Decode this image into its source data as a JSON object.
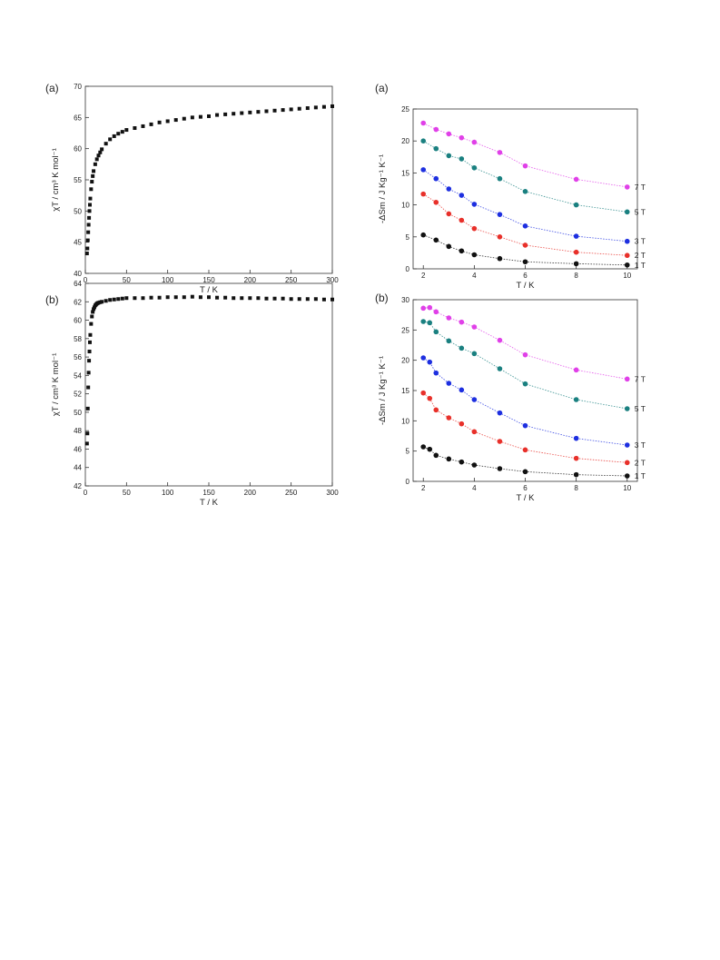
{
  "chart_data": [
    {
      "type": "scatter",
      "panel_label": "(a)",
      "xlabel": "T / K",
      "ylabel": "χT / cm³ K mol⁻¹",
      "xlim": [
        0,
        300
      ],
      "ylim": [
        40,
        70
      ],
      "xticks": [
        0,
        50,
        100,
        150,
        200,
        250,
        300
      ],
      "yticks": [
        40,
        45,
        50,
        55,
        60,
        65,
        70
      ],
      "marker": "square",
      "series": [
        {
          "color": "#111111",
          "x": [
            2,
            2.5,
            3,
            3.5,
            4,
            4.5,
            5,
            5.5,
            6,
            7,
            8,
            9,
            10,
            12,
            14,
            16,
            18,
            20,
            25,
            30,
            35,
            40,
            45,
            50,
            60,
            70,
            80,
            90,
            100,
            110,
            120,
            130,
            140,
            150,
            160,
            170,
            180,
            190,
            200,
            210,
            220,
            230,
            240,
            250,
            260,
            270,
            280,
            290,
            300
          ],
          "y": [
            43.2,
            44.0,
            45.3,
            46.6,
            47.8,
            48.9,
            50.0,
            51.0,
            52.0,
            53.5,
            54.7,
            55.6,
            56.4,
            57.5,
            58.3,
            58.9,
            59.4,
            59.9,
            60.8,
            61.5,
            62.0,
            62.4,
            62.7,
            63.0,
            63.3,
            63.6,
            63.9,
            64.2,
            64.4,
            64.6,
            64.8,
            65.0,
            65.1,
            65.2,
            65.4,
            65.5,
            65.6,
            65.7,
            65.8,
            65.9,
            66.0,
            66.1,
            66.2,
            66.3,
            66.4,
            66.5,
            66.6,
            66.7,
            66.8
          ]
        }
      ]
    },
    {
      "type": "line",
      "panel_label": "(a)",
      "xlabel": "T / K",
      "ylabel": "-ΔSm / J Kg⁻¹ K⁻¹",
      "xlim": [
        1.6,
        10.4
      ],
      "ylim": [
        0,
        25
      ],
      "xticks": [
        2,
        4,
        6,
        8,
        10
      ],
      "yticks": [
        0,
        5,
        10,
        15,
        20,
        25
      ],
      "series": [
        {
          "name": "1 T",
          "color": "#111111",
          "x": [
            2,
            2.5,
            3,
            3.5,
            4,
            5,
            6,
            8,
            10
          ],
          "y": [
            5.3,
            4.5,
            3.5,
            2.8,
            2.2,
            1.6,
            1.1,
            0.8,
            0.6
          ]
        },
        {
          "name": "2 T",
          "color": "#e8302a",
          "x": [
            2,
            2.5,
            3,
            3.5,
            4,
            5,
            6,
            8,
            10
          ],
          "y": [
            11.7,
            10.4,
            8.6,
            7.6,
            6.3,
            5.0,
            3.7,
            2.6,
            2.1
          ]
        },
        {
          "name": "3 T",
          "color": "#1d2fe0",
          "x": [
            2,
            2.5,
            3,
            3.5,
            4,
            5,
            6,
            8,
            10
          ],
          "y": [
            15.5,
            14.1,
            12.5,
            11.5,
            10.1,
            8.5,
            6.7,
            5.1,
            4.3
          ]
        },
        {
          "name": "5 T",
          "color": "#1a8080",
          "x": [
            2,
            2.5,
            3,
            3.5,
            4,
            5,
            6,
            8,
            10
          ],
          "y": [
            20.0,
            18.8,
            17.7,
            17.2,
            15.8,
            14.1,
            12.1,
            10.0,
            8.9
          ]
        },
        {
          "name": "7 T",
          "color": "#e040e8",
          "x": [
            2,
            2.5,
            3,
            3.5,
            4,
            5,
            6,
            8,
            10
          ],
          "y": [
            22.8,
            21.8,
            21.1,
            20.5,
            19.8,
            18.2,
            16.1,
            14.0,
            12.8
          ]
        }
      ]
    },
    {
      "type": "scatter",
      "panel_label": "(b)",
      "xlabel": "T / K",
      "ylabel": "χT / cm³ K mol⁻¹",
      "xlim": [
        0,
        300
      ],
      "ylim": [
        42,
        64
      ],
      "xticks": [
        0,
        50,
        100,
        150,
        200,
        250,
        300
      ],
      "yticks": [
        42,
        44,
        46,
        48,
        50,
        52,
        54,
        56,
        58,
        60,
        62,
        64
      ],
      "marker": "square",
      "series": [
        {
          "color": "#111111",
          "x": [
            2,
            2.5,
            3,
            3.5,
            4,
            4.5,
            5,
            5.5,
            6,
            7,
            8,
            9,
            10,
            11,
            12,
            13,
            14,
            15,
            16,
            18,
            20,
            25,
            30,
            35,
            40,
            45,
            50,
            60,
            70,
            80,
            90,
            100,
            110,
            120,
            130,
            140,
            150,
            160,
            170,
            180,
            190,
            200,
            210,
            220,
            230,
            240,
            250,
            260,
            270,
            280,
            290,
            300
          ],
          "y": [
            46.6,
            47.7,
            50.4,
            52.7,
            54.3,
            55.6,
            56.6,
            57.6,
            58.4,
            59.6,
            60.4,
            60.9,
            61.2,
            61.4,
            61.6,
            61.7,
            61.8,
            61.85,
            61.9,
            61.95,
            62.0,
            62.1,
            62.2,
            62.25,
            62.3,
            62.35,
            62.4,
            62.4,
            62.4,
            62.45,
            62.45,
            62.5,
            62.5,
            62.5,
            62.55,
            62.5,
            62.5,
            62.45,
            62.45,
            62.4,
            62.4,
            62.4,
            62.4,
            62.35,
            62.35,
            62.35,
            62.3,
            62.3,
            62.3,
            62.3,
            62.25,
            62.25
          ]
        }
      ]
    },
    {
      "type": "line",
      "panel_label": "(b)",
      "xlabel": "T / K",
      "ylabel": "-ΔSm / J Kg⁻¹ K⁻¹",
      "xlim": [
        1.6,
        10.4
      ],
      "ylim": [
        0,
        30
      ],
      "xticks": [
        2,
        4,
        6,
        8,
        10
      ],
      "yticks": [
        0,
        5,
        10,
        15,
        20,
        25,
        30
      ],
      "series": [
        {
          "name": "1 T",
          "color": "#111111",
          "x": [
            2,
            2.25,
            2.5,
            3,
            3.5,
            4,
            5,
            6,
            8,
            10
          ],
          "y": [
            5.7,
            5.3,
            4.3,
            3.7,
            3.2,
            2.7,
            2.1,
            1.6,
            1.1,
            0.9
          ]
        },
        {
          "name": "2 T",
          "color": "#e8302a",
          "x": [
            2,
            2.25,
            2.5,
            3,
            3.5,
            4,
            5,
            6,
            8,
            10
          ],
          "y": [
            14.6,
            13.7,
            11.8,
            10.5,
            9.5,
            8.2,
            6.6,
            5.2,
            3.8,
            3.1
          ]
        },
        {
          "name": "3 T",
          "color": "#1d2fe0",
          "x": [
            2,
            2.25,
            2.5,
            3,
            3.5,
            4,
            5,
            6,
            8,
            10
          ],
          "y": [
            20.4,
            19.7,
            17.9,
            16.2,
            15.1,
            13.5,
            11.3,
            9.2,
            7.1,
            6.0
          ]
        },
        {
          "name": "5 T",
          "color": "#1a8080",
          "x": [
            2,
            2.25,
            2.5,
            3,
            3.5,
            4,
            5,
            6,
            8,
            10
          ],
          "y": [
            26.4,
            26.2,
            24.7,
            23.2,
            22.0,
            21.1,
            18.6,
            16.1,
            13.5,
            12.0
          ]
        },
        {
          "name": "7 T",
          "color": "#e040e8",
          "x": [
            2,
            2.25,
            2.5,
            3,
            3.5,
            4,
            5,
            6,
            8,
            10
          ],
          "y": [
            28.6,
            28.7,
            28.0,
            27.0,
            26.3,
            25.5,
            23.3,
            20.9,
            18.4,
            16.9
          ]
        }
      ]
    }
  ]
}
